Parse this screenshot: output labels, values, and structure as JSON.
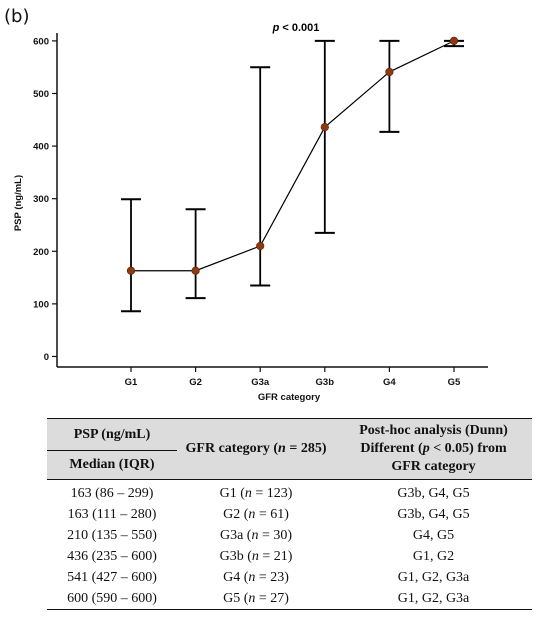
{
  "panel_label": "(b)",
  "chart_data": {
    "type": "line",
    "annotation": "p < 0.001",
    "annotation_parts": {
      "p": "p",
      "rest": " < 0.001"
    },
    "xlabel": "GFR category",
    "ylabel": "PSP (ng/mL)",
    "categories": [
      "G1",
      "G2",
      "G3a",
      "G3b",
      "G4",
      "G5"
    ],
    "ylim": [
      -20,
      615
    ],
    "yticks": [
      0,
      100,
      200,
      300,
      400,
      500,
      600
    ],
    "series": [
      {
        "values": [
          163,
          163,
          210,
          436,
          541,
          600
        ],
        "lower": [
          86,
          111,
          135,
          235,
          427,
          590
        ],
        "upper": [
          299,
          280,
          550,
          600,
          600,
          600
        ]
      }
    ],
    "marker_color": "#8B3A12",
    "line_color": "#000000",
    "grid": false
  },
  "table": {
    "header": {
      "psp": "PSP (ng/mL)",
      "median": "Median (IQR)",
      "gfr_prefix": "GFR category (",
      "gfr_n": "n",
      "gfr_suffix": " = 285)",
      "posthoc_line1": "Post-hoc analysis (Dunn)",
      "posthoc_line2_prefix": "Different (",
      "posthoc_p": "p",
      "posthoc_line2_suffix": " < 0.05) from",
      "posthoc_line3": "GFR category"
    },
    "rows": [
      {
        "median": "163 (86 – 299)",
        "cat": "G1",
        "n": "123",
        "diff": "G3b, G4, G5"
      },
      {
        "median": "163 (111 – 280)",
        "cat": "G2",
        "n": "61",
        "diff": "G3b, G4, G5"
      },
      {
        "median": "210 (135 – 550)",
        "cat": "G3a",
        "n": "30",
        "diff": "G4, G5"
      },
      {
        "median": "436 (235 – 600)",
        "cat": "G3b",
        "n": "21",
        "diff": "G1, G2"
      },
      {
        "median": "541 (427 – 600)",
        "cat": "G4",
        "n": "23",
        "diff": "G1, G2, G3a"
      },
      {
        "median": "600 (590 – 600)",
        "cat": "G5",
        "n": "27",
        "diff": "G1, G2, G3a"
      }
    ]
  }
}
